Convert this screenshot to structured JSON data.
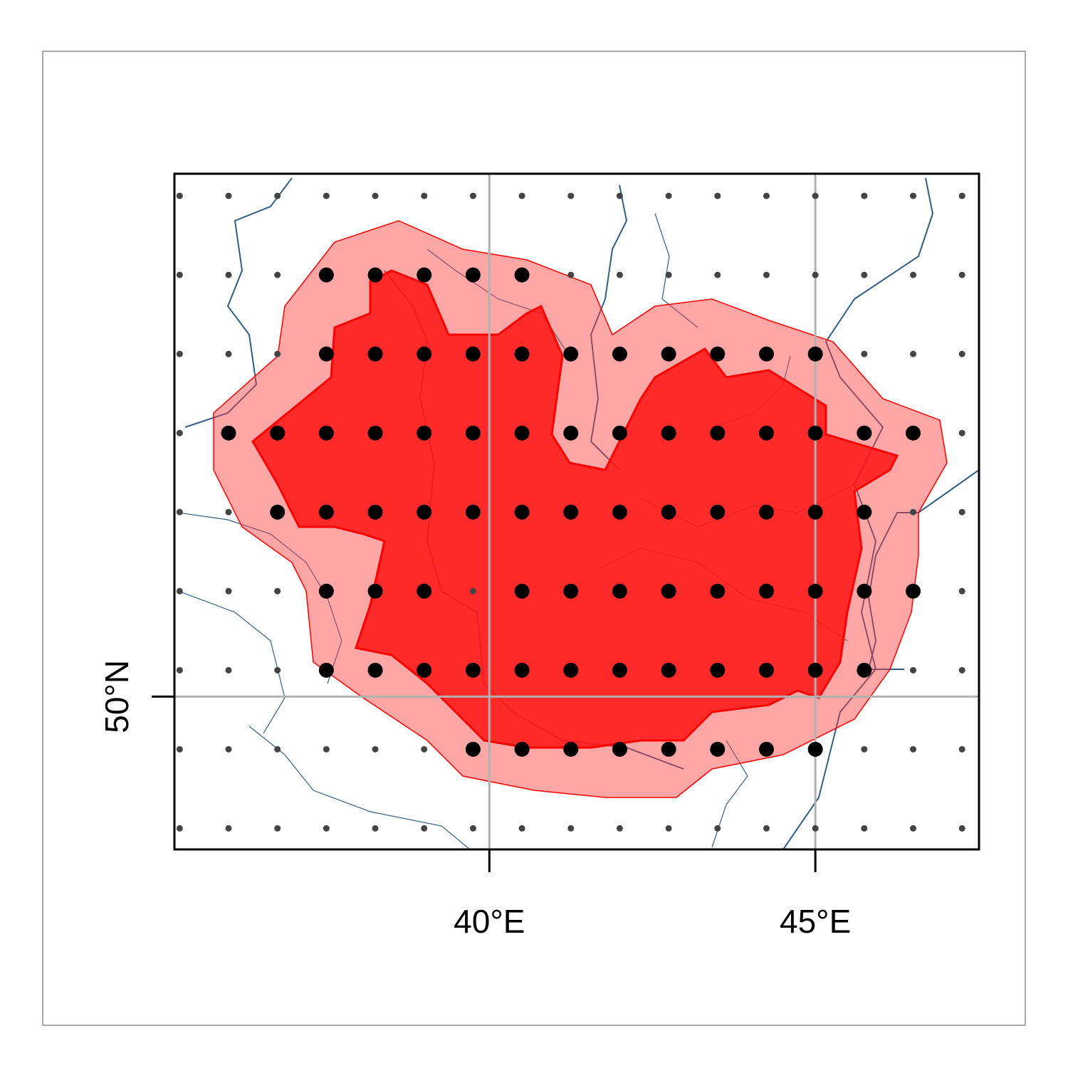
{
  "chart_data": {
    "type": "map",
    "xlim": [
      35.17,
      47.51
    ],
    "ylim": [
      48.55,
      54.96
    ],
    "xticks": [
      {
        "value": 40,
        "label": "40°E"
      },
      {
        "value": 45,
        "label": "45°E"
      }
    ],
    "yticks": [
      {
        "value": 50,
        "label": "50°N"
      }
    ],
    "grid": true,
    "grid_points": {
      "lons": [
        35.25,
        36,
        36.75,
        37.5,
        38.25,
        39,
        39.75,
        40.5,
        41.25,
        42,
        42.75,
        43.5,
        44.25,
        45,
        45.75,
        46.5,
        47.25
      ],
      "lats": [
        54.75,
        54,
        53.25,
        52.5,
        51.75,
        51,
        50.25,
        49.5,
        48.75
      ],
      "color": "#444444"
    },
    "selected": {
      "color": "#000000",
      "rows": [
        {
          "lat": 54,
          "lons": [
            37.5,
            38.25,
            39,
            39.75,
            40.5
          ]
        },
        {
          "lat": 53.25,
          "lons": [
            37.5,
            38.25,
            39,
            39.75,
            40.5,
            41.25,
            42,
            42.75,
            43.5,
            44.25,
            45
          ]
        },
        {
          "lat": 52.5,
          "lons": [
            36,
            36.75,
            37.5,
            38.25,
            39,
            39.75,
            40.5,
            41.25,
            42,
            42.75,
            43.5,
            44.25,
            45,
            45.75,
            46.5
          ]
        },
        {
          "lat": 51.75,
          "lons": [
            36.75,
            37.5,
            38.25,
            39,
            39.75,
            40.5,
            41.25,
            42,
            42.75,
            43.5,
            44.25,
            45,
            45.75
          ]
        },
        {
          "lat": 51,
          "lons": [
            37.5,
            38.25,
            39,
            40.5,
            41.25,
            42,
            42.75,
            43.5,
            44.25,
            45,
            45.75,
            46.5
          ]
        },
        {
          "lat": 50.25,
          "lons": [
            37.5,
            38.25,
            39,
            39.75,
            40.5,
            41.25,
            42,
            42.75,
            43.5,
            44.25,
            45,
            45.75
          ]
        },
        {
          "lat": 49.5,
          "lons": [
            39.75,
            40.5,
            41.25,
            42,
            42.75,
            43.5,
            44.25,
            45
          ]
        }
      ]
    }
  }
}
